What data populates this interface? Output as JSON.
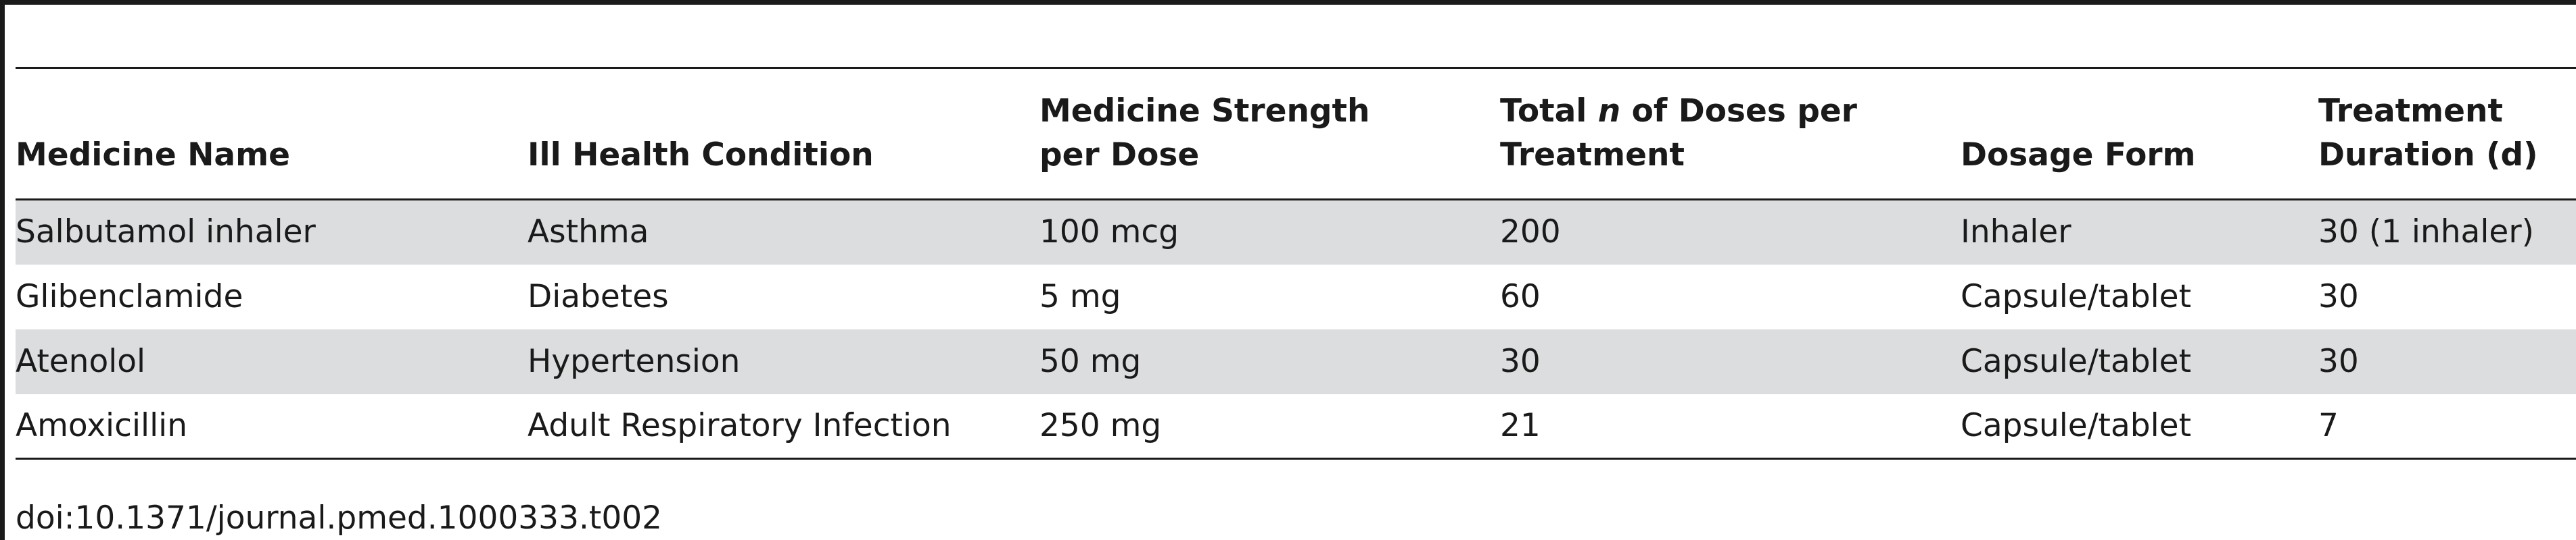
{
  "table": {
    "headers": [
      {
        "id": "medicine-name",
        "lines": [
          "Medicine Name"
        ]
      },
      {
        "id": "condition",
        "lines": [
          "Ill Health Condition"
        ]
      },
      {
        "id": "strength",
        "lines": [
          "Medicine Strength",
          "per Dose"
        ]
      },
      {
        "id": "doses",
        "lines": [
          "Total n of Doses per",
          "Treatment"
        ]
      },
      {
        "id": "form",
        "lines": [
          "Dosage Form"
        ]
      },
      {
        "id": "duration",
        "lines": [
          "Treatment",
          "Duration (d)"
        ]
      }
    ],
    "rows": [
      {
        "medicine": "Salbutamol inhaler",
        "condition": "Asthma",
        "strength": "100 mcg",
        "doses": "200",
        "form": "Inhaler",
        "duration": "30 (1 inhaler)"
      },
      {
        "medicine": "Glibenclamide",
        "condition": "Diabetes",
        "strength": "5 mg",
        "doses": "60",
        "form": "Capsule/tablet",
        "duration": "30"
      },
      {
        "medicine": "Atenolol",
        "condition": "Hypertension",
        "strength": "50 mg",
        "doses": "30",
        "form": "Capsule/tablet",
        "duration": "30"
      },
      {
        "medicine": "Amoxicillin",
        "condition": "Adult Respiratory Infection",
        "strength": "250 mg",
        "doses": "21",
        "form": "Capsule/tablet",
        "duration": "7"
      }
    ]
  },
  "doi": "doi:10.1371/journal.pmed.1000333.t002"
}
